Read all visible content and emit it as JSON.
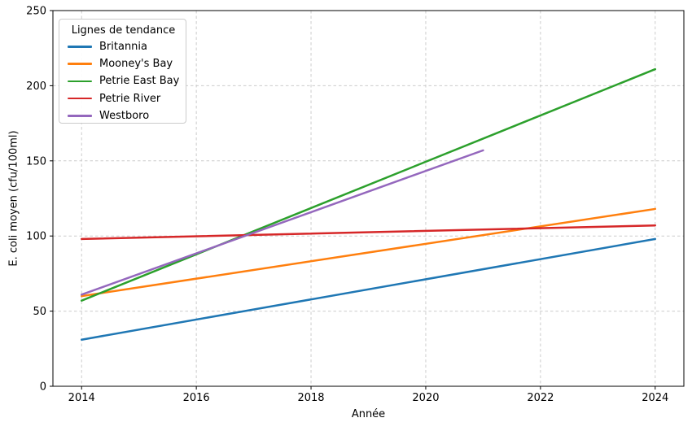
{
  "figure": {
    "background": "#ffffff",
    "axis_color": "#000000"
  },
  "chart_data": {
    "type": "line",
    "title": "",
    "xlabel": "Année",
    "ylabel": "E. coli moyen (cfu/100ml)",
    "xlim": [
      2013.5,
      2024.5
    ],
    "ylim": [
      0,
      250
    ],
    "xticks": [
      2014,
      2016,
      2018,
      2020,
      2022,
      2024
    ],
    "yticks": [
      0,
      50,
      100,
      150,
      200,
      250
    ],
    "grid": "dashed-both-directions",
    "grid_color": "#cccccc",
    "legend": {
      "title": "Lignes de tendance",
      "position": "upper-left"
    },
    "series": [
      {
        "name": "Britannia",
        "color": "#1f77b4",
        "x": [
          2014,
          2024
        ],
        "values": [
          31,
          98
        ]
      },
      {
        "name": "Mooney's Bay",
        "color": "#ff7f0e",
        "x": [
          2014,
          2024
        ],
        "values": [
          60,
          118
        ]
      },
      {
        "name": "Petrie East Bay",
        "color": "#2ca02c",
        "x": [
          2014,
          2024
        ],
        "values": [
          57,
          211
        ]
      },
      {
        "name": "Petrie River",
        "color": "#d62728",
        "x": [
          2014,
          2024
        ],
        "values": [
          98,
          107
        ]
      },
      {
        "name": "Westboro",
        "color": "#9467bd",
        "x": [
          2014,
          2021
        ],
        "values": [
          61,
          157
        ]
      }
    ]
  }
}
